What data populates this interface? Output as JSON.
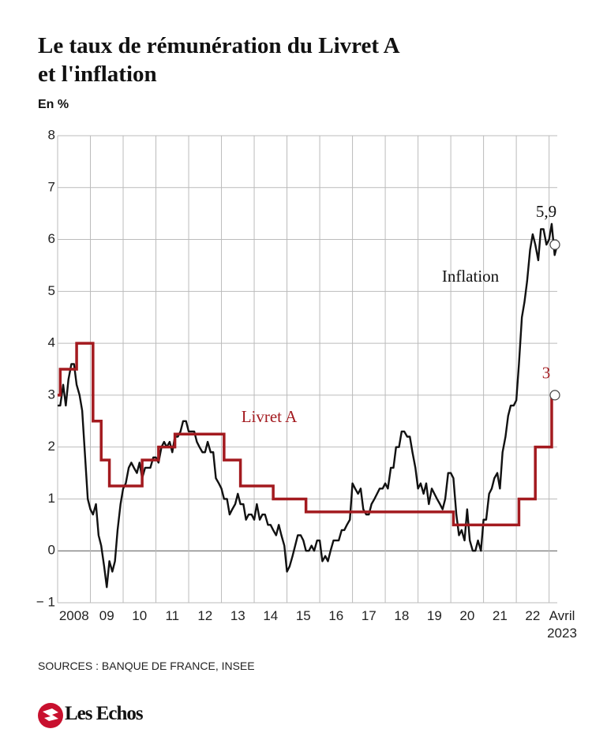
{
  "chart_data": {
    "type": "line",
    "title": [
      "Le taux de rémunération du Livret A",
      "et l'inflation"
    ],
    "subtitle": "En %",
    "source": "SOURCES : BANQUE DE FRANCE, INSEE",
    "logo": "Les Echos",
    "xlim": [
      2008,
      2023.25
    ],
    "xticks": [
      {
        "value": 2008,
        "label": "2008"
      },
      {
        "value": 2009,
        "label": "09"
      },
      {
        "value": 2010,
        "label": "10"
      },
      {
        "value": 2011,
        "label": "11"
      },
      {
        "value": 2012,
        "label": "12"
      },
      {
        "value": 2013,
        "label": "13"
      },
      {
        "value": 2014,
        "label": "14"
      },
      {
        "value": 2015,
        "label": "15"
      },
      {
        "value": 2016,
        "label": "16"
      },
      {
        "value": 2017,
        "label": "17"
      },
      {
        "value": 2018,
        "label": "18"
      },
      {
        "value": 2019,
        "label": "19"
      },
      {
        "value": 2020,
        "label": "20"
      },
      {
        "value": 2021,
        "label": "21"
      },
      {
        "value": 2022,
        "label": "22"
      },
      {
        "value": 2023,
        "label": "Avril 2023"
      }
    ],
    "ylim": [
      -1,
      8
    ],
    "yticks": [
      {
        "value": -1,
        "label": "− 1"
      },
      0,
      1,
      2,
      3,
      4,
      5,
      6,
      7,
      8
    ],
    "grid": true,
    "series": [
      {
        "name": "Inflation",
        "color": "#111111",
        "step": false,
        "x": [
          2008,
          2008.08,
          2008.17,
          2008.25,
          2008.33,
          2008.42,
          2008.5,
          2008.58,
          2008.67,
          2008.75,
          2008.83,
          2008.92,
          2009,
          2009.08,
          2009.17,
          2009.25,
          2009.33,
          2009.42,
          2009.5,
          2009.58,
          2009.67,
          2009.75,
          2009.83,
          2009.92,
          2010,
          2010.08,
          2010.17,
          2010.25,
          2010.33,
          2010.42,
          2010.5,
          2010.58,
          2010.67,
          2010.75,
          2010.83,
          2010.92,
          2011,
          2011.08,
          2011.17,
          2011.25,
          2011.33,
          2011.42,
          2011.5,
          2011.58,
          2011.67,
          2011.75,
          2011.83,
          2011.92,
          2012,
          2012.08,
          2012.17,
          2012.25,
          2012.33,
          2012.42,
          2012.5,
          2012.58,
          2012.67,
          2012.75,
          2012.83,
          2012.92,
          2013,
          2013.08,
          2013.17,
          2013.25,
          2013.33,
          2013.42,
          2013.5,
          2013.58,
          2013.67,
          2013.75,
          2013.83,
          2013.92,
          2014,
          2014.08,
          2014.17,
          2014.25,
          2014.33,
          2014.42,
          2014.5,
          2014.58,
          2014.67,
          2014.75,
          2014.83,
          2014.92,
          2015,
          2015.08,
          2015.17,
          2015.25,
          2015.33,
          2015.42,
          2015.5,
          2015.58,
          2015.67,
          2015.75,
          2015.83,
          2015.92,
          2016,
          2016.08,
          2016.17,
          2016.25,
          2016.33,
          2016.42,
          2016.5,
          2016.58,
          2016.67,
          2016.75,
          2016.83,
          2016.92,
          2017,
          2017.08,
          2017.17,
          2017.25,
          2017.33,
          2017.42,
          2017.5,
          2017.58,
          2017.67,
          2017.75,
          2017.83,
          2017.92,
          2018,
          2018.08,
          2018.17,
          2018.25,
          2018.33,
          2018.42,
          2018.5,
          2018.58,
          2018.67,
          2018.75,
          2018.83,
          2018.92,
          2019,
          2019.08,
          2019.17,
          2019.25,
          2019.33,
          2019.42,
          2019.5,
          2019.58,
          2019.67,
          2019.75,
          2019.83,
          2019.92,
          2020,
          2020.08,
          2020.17,
          2020.25,
          2020.33,
          2020.42,
          2020.5,
          2020.58,
          2020.67,
          2020.75,
          2020.83,
          2020.92,
          2021,
          2021.08,
          2021.17,
          2021.25,
          2021.33,
          2021.42,
          2021.5,
          2021.58,
          2021.67,
          2021.75,
          2021.83,
          2021.92,
          2022,
          2022.08,
          2022.17,
          2022.25,
          2022.33,
          2022.42,
          2022.5,
          2022.58,
          2022.67,
          2022.75,
          2022.83,
          2022.92,
          2023,
          2023.08,
          2023.17,
          2023.25
        ],
        "values": [
          2.8,
          2.8,
          3.2,
          2.8,
          3.3,
          3.6,
          3.6,
          3.2,
          3.0,
          2.7,
          1.9,
          1.0,
          0.8,
          0.7,
          0.9,
          0.3,
          0.1,
          -0.3,
          -0.7,
          -0.2,
          -0.4,
          -0.2,
          0.4,
          0.9,
          1.2,
          1.3,
          1.6,
          1.7,
          1.6,
          1.5,
          1.7,
          1.4,
          1.6,
          1.6,
          1.6,
          1.8,
          1.8,
          1.7,
          2.0,
          2.1,
          2.0,
          2.1,
          1.9,
          2.2,
          2.2,
          2.3,
          2.5,
          2.5,
          2.3,
          2.3,
          2.3,
          2.1,
          2.0,
          1.9,
          1.9,
          2.1,
          1.9,
          1.9,
          1.4,
          1.3,
          1.2,
          1.0,
          1.0,
          0.7,
          0.8,
          0.9,
          1.1,
          0.9,
          0.9,
          0.6,
          0.7,
          0.7,
          0.6,
          0.9,
          0.6,
          0.7,
          0.7,
          0.5,
          0.5,
          0.4,
          0.3,
          0.5,
          0.3,
          0.1,
          -0.4,
          -0.3,
          -0.1,
          0.1,
          0.3,
          0.3,
          0.2,
          0.0,
          0.0,
          0.1,
          0.0,
          0.2,
          0.2,
          -0.2,
          -0.1,
          -0.2,
          0.0,
          0.2,
          0.2,
          0.2,
          0.4,
          0.4,
          0.5,
          0.6,
          1.3,
          1.2,
          1.1,
          1.2,
          0.8,
          0.7,
          0.7,
          0.9,
          1.0,
          1.1,
          1.2,
          1.2,
          1.3,
          1.2,
          1.6,
          1.6,
          2.0,
          2.0,
          2.3,
          2.3,
          2.2,
          2.2,
          1.9,
          1.6,
          1.2,
          1.3,
          1.1,
          1.3,
          0.9,
          1.2,
          1.1,
          1.0,
          0.9,
          0.8,
          1.0,
          1.5,
          1.5,
          1.4,
          0.7,
          0.3,
          0.4,
          0.2,
          0.8,
          0.2,
          0.0,
          0.0,
          0.2,
          0.0,
          0.6,
          0.6,
          1.1,
          1.2,
          1.4,
          1.5,
          1.2,
          1.9,
          2.2,
          2.6,
          2.8,
          2.8,
          2.9,
          3.6,
          4.5,
          4.8,
          5.2,
          5.8,
          6.1,
          5.9,
          5.6,
          6.2,
          6.2,
          5.9,
          6.0,
          6.3,
          5.7,
          5.9
        ],
        "value_labels": [
          null,
          null,
          null,
          null,
          null,
          null,
          null,
          null,
          null,
          null,
          null,
          null,
          null,
          null,
          null,
          null,
          null,
          null,
          null,
          null,
          null,
          null,
          null,
          null,
          null,
          null,
          null,
          null,
          null,
          null,
          null,
          null,
          null,
          null,
          null,
          null,
          null,
          null,
          null,
          null,
          null,
          null,
          null,
          null,
          null,
          null,
          null,
          null,
          null,
          null,
          null,
          null,
          null,
          null,
          null,
          null,
          null,
          null,
          null,
          null,
          null,
          null,
          null,
          null,
          null,
          null,
          null,
          null,
          null,
          null,
          null,
          null,
          null,
          null,
          null,
          null,
          null,
          null,
          null,
          null,
          null,
          null,
          null,
          null,
          null,
          null,
          null,
          null,
          null,
          null,
          null,
          null,
          null,
          null,
          null,
          null,
          null,
          null,
          null,
          null,
          null,
          null,
          null,
          null,
          null,
          null,
          null,
          null,
          null,
          null,
          null,
          null,
          null,
          null,
          null,
          null,
          null,
          null,
          null,
          null,
          null,
          null,
          null,
          null,
          null,
          null,
          null,
          null,
          null,
          null,
          null,
          null,
          null,
          null,
          null,
          null,
          null,
          null,
          null,
          null,
          null,
          null,
          null,
          null,
          null,
          null,
          null,
          null,
          null,
          null,
          null,
          null,
          null,
          null,
          null,
          null,
          null,
          null,
          null,
          null,
          null,
          null,
          null,
          null,
          null,
          null,
          null,
          null,
          null,
          null,
          null,
          null,
          null,
          null,
          null,
          null,
          null,
          null,
          null,
          null,
          null,
          null,
          null,
          "5,9"
        ]
      },
      {
        "name": "Livret A",
        "color": "#a31a1f",
        "step": true,
        "x": [
          2008,
          2008.08,
          2008.58,
          2009.08,
          2009.33,
          2009.58,
          2010.58,
          2011.08,
          2011.58,
          2013.08,
          2013.58,
          2014.58,
          2015.58,
          2020.08,
          2022.08,
          2022.58,
          2023.08,
          2023.25
        ],
        "values": [
          3,
          3.5,
          4,
          2.5,
          1.75,
          1.25,
          1.75,
          2,
          2.25,
          1.75,
          1.25,
          1,
          0.75,
          0.5,
          1,
          2,
          3,
          3
        ],
        "value_labels": [
          null,
          null,
          null,
          null,
          null,
          null,
          null,
          null,
          null,
          null,
          null,
          null,
          null,
          null,
          null,
          null,
          null,
          "3"
        ]
      }
    ]
  }
}
